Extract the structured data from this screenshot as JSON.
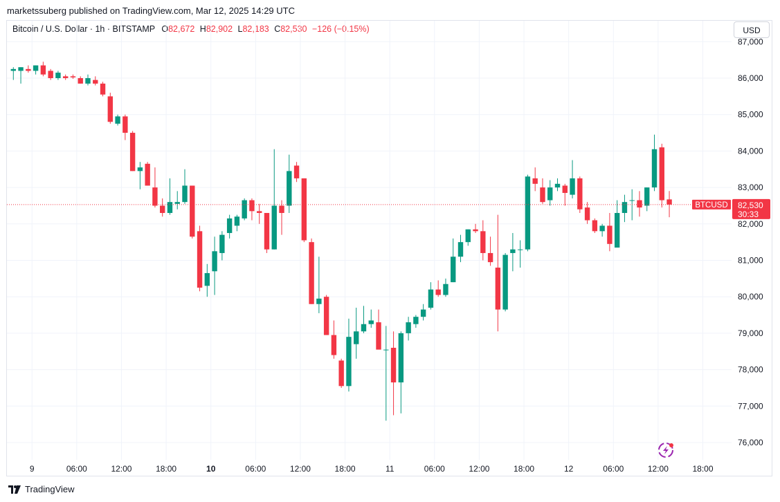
{
  "header": {
    "published_text": "marketssuberg published on TradingView.com, Mar 12, 2025 14:29 UTC"
  },
  "legend": {
    "symbol": "Bitcoin / U.S. Dollar · 1h · BITSTAMP",
    "o_label": "O",
    "o_value": "82,672",
    "h_label": "H",
    "h_value": "82,902",
    "l_label": "L",
    "l_value": "82,183",
    "c_label": "C",
    "c_value": "82,530",
    "change": "−126 (−0.15%)"
  },
  "currency_button": "USD",
  "price_tag": {
    "symbol": "BTCUSD",
    "price": "82,530",
    "countdown": "30:33",
    "value": 82530
  },
  "footer": {
    "brand": "TradingView"
  },
  "colors": {
    "up": "#089981",
    "down": "#f23645",
    "grid": "#f0f3fa",
    "text": "#131722"
  },
  "chart_data": {
    "type": "candlestick",
    "title": "Bitcoin / U.S. Dollar · 1h · BITSTAMP",
    "y_ticks": [
      {
        "v": 76000,
        "l": "76,000"
      },
      {
        "v": 77000,
        "l": "77,000"
      },
      {
        "v": 78000,
        "l": "78,000"
      },
      {
        "v": 79000,
        "l": "79,000"
      },
      {
        "v": 80000,
        "l": "80,000"
      },
      {
        "v": 81000,
        "l": "81,000"
      },
      {
        "v": 82000,
        "l": "82,000"
      },
      {
        "v": 83000,
        "l": "83,000"
      },
      {
        "v": 84000,
        "l": "84,000"
      },
      {
        "v": 85000,
        "l": "85,000"
      },
      {
        "v": 86000,
        "l": "86,000"
      },
      {
        "v": 87000,
        "l": "87,000"
      }
    ],
    "x_ticks": [
      {
        "i": 2.5,
        "l": "9",
        "bold": false
      },
      {
        "i": 8.5,
        "l": "06:00",
        "bold": false
      },
      {
        "i": 14.5,
        "l": "12:00",
        "bold": false
      },
      {
        "i": 20.5,
        "l": "18:00",
        "bold": false
      },
      {
        "i": 26.5,
        "l": "10",
        "bold": true
      },
      {
        "i": 32.5,
        "l": "06:00",
        "bold": false
      },
      {
        "i": 38.5,
        "l": "12:00",
        "bold": false
      },
      {
        "i": 44.5,
        "l": "18:00",
        "bold": false
      },
      {
        "i": 50.5,
        "l": "11",
        "bold": false
      },
      {
        "i": 56.5,
        "l": "06:00",
        "bold": false
      },
      {
        "i": 62.5,
        "l": "12:00",
        "bold": false
      },
      {
        "i": 68.5,
        "l": "18:00",
        "bold": false
      },
      {
        "i": 74.5,
        "l": "12",
        "bold": false
      },
      {
        "i": 80.5,
        "l": "06:00",
        "bold": false
      },
      {
        "i": 86.5,
        "l": "12:00",
        "bold": false
      },
      {
        "i": 92.5,
        "l": "18:00",
        "bold": false
      }
    ],
    "candles": [
      {
        "o": 86200,
        "h": 86300,
        "l": 85950,
        "c": 86250
      },
      {
        "o": 86200,
        "h": 86300,
        "l": 85850,
        "c": 86300
      },
      {
        "o": 86250,
        "h": 86350,
        "l": 86150,
        "c": 86200
      },
      {
        "o": 86200,
        "h": 86350,
        "l": 86100,
        "c": 86350
      },
      {
        "o": 86350,
        "h": 86450,
        "l": 86050,
        "c": 86100
      },
      {
        "o": 86200,
        "h": 86250,
        "l": 85950,
        "c": 86000
      },
      {
        "o": 86000,
        "h": 86200,
        "l": 85950,
        "c": 86150
      },
      {
        "o": 86050,
        "h": 86100,
        "l": 85950,
        "c": 86000
      },
      {
        "o": 86050,
        "h": 86100,
        "l": 85980,
        "c": 86020
      },
      {
        "o": 86000,
        "h": 86050,
        "l": 85850,
        "c": 85850
      },
      {
        "o": 85850,
        "h": 86100,
        "l": 85800,
        "c": 86000
      },
      {
        "o": 85950,
        "h": 86050,
        "l": 85800,
        "c": 85850
      },
      {
        "o": 85850,
        "h": 85900,
        "l": 85500,
        "c": 85550
      },
      {
        "o": 85500,
        "h": 85600,
        "l": 84750,
        "c": 84800
      },
      {
        "o": 84750,
        "h": 85000,
        "l": 84700,
        "c": 84950
      },
      {
        "o": 84950,
        "h": 85000,
        "l": 84300,
        "c": 84500
      },
      {
        "o": 84500,
        "h": 84550,
        "l": 83450,
        "c": 83450
      },
      {
        "o": 83450,
        "h": 83700,
        "l": 82950,
        "c": 83550
      },
      {
        "o": 83650,
        "h": 83700,
        "l": 83050,
        "c": 83050
      },
      {
        "o": 83000,
        "h": 83550,
        "l": 82450,
        "c": 82500
      },
      {
        "o": 82500,
        "h": 82700,
        "l": 82200,
        "c": 82300
      },
      {
        "o": 82300,
        "h": 83250,
        "l": 82250,
        "c": 82600
      },
      {
        "o": 82550,
        "h": 82900,
        "l": 82400,
        "c": 82600
      },
      {
        "o": 82600,
        "h": 83500,
        "l": 82550,
        "c": 83050
      },
      {
        "o": 83050,
        "h": 83050,
        "l": 81600,
        "c": 81650
      },
      {
        "o": 81800,
        "h": 81950,
        "l": 80150,
        "c": 80250
      },
      {
        "o": 80300,
        "h": 80900,
        "l": 80000,
        "c": 80650
      },
      {
        "o": 80700,
        "h": 81650,
        "l": 80050,
        "c": 81250
      },
      {
        "o": 81200,
        "h": 81800,
        "l": 81000,
        "c": 81700
      },
      {
        "o": 81750,
        "h": 82250,
        "l": 81600,
        "c": 82150
      },
      {
        "o": 81950,
        "h": 82250,
        "l": 81800,
        "c": 82200
      },
      {
        "o": 82150,
        "h": 82700,
        "l": 82100,
        "c": 82650
      },
      {
        "o": 82650,
        "h": 82700,
        "l": 82100,
        "c": 82350
      },
      {
        "o": 82350,
        "h": 82550,
        "l": 82000,
        "c": 82300
      },
      {
        "o": 82300,
        "h": 82300,
        "l": 81200,
        "c": 81300
      },
      {
        "o": 81300,
        "h": 84050,
        "l": 81300,
        "c": 82500
      },
      {
        "o": 82500,
        "h": 82650,
        "l": 81700,
        "c": 82300
      },
      {
        "o": 82500,
        "h": 83900,
        "l": 82300,
        "c": 83450
      },
      {
        "o": 83600,
        "h": 83700,
        "l": 83150,
        "c": 83250
      },
      {
        "o": 83250,
        "h": 83250,
        "l": 81500,
        "c": 81550
      },
      {
        "o": 81500,
        "h": 81600,
        "l": 79800,
        "c": 79800
      },
      {
        "o": 79800,
        "h": 81100,
        "l": 79550,
        "c": 79950
      },
      {
        "o": 80000,
        "h": 80050,
        "l": 78950,
        "c": 78950
      },
      {
        "o": 78950,
        "h": 79350,
        "l": 78300,
        "c": 78400
      },
      {
        "o": 78250,
        "h": 78300,
        "l": 77500,
        "c": 77550
      },
      {
        "o": 77550,
        "h": 79400,
        "l": 77400,
        "c": 78900
      },
      {
        "o": 78700,
        "h": 79700,
        "l": 78300,
        "c": 79050
      },
      {
        "o": 79050,
        "h": 79750,
        "l": 79000,
        "c": 79250
      },
      {
        "o": 79250,
        "h": 79650,
        "l": 79150,
        "c": 79350
      },
      {
        "o": 79300,
        "h": 79650,
        "l": 78600,
        "c": 78550
      },
      {
        "o": 78550,
        "h": 79200,
        "l": 76600,
        "c": 78550
      },
      {
        "o": 78600,
        "h": 79050,
        "l": 76750,
        "c": 77650
      },
      {
        "o": 77650,
        "h": 79050,
        "l": 76800,
        "c": 79000
      },
      {
        "o": 79000,
        "h": 79450,
        "l": 78800,
        "c": 79300
      },
      {
        "o": 79250,
        "h": 79500,
        "l": 79150,
        "c": 79450
      },
      {
        "o": 79450,
        "h": 79800,
        "l": 79350,
        "c": 79650
      },
      {
        "o": 79700,
        "h": 80400,
        "l": 79650,
        "c": 80200
      },
      {
        "o": 80200,
        "h": 80450,
        "l": 80000,
        "c": 80050
      },
      {
        "o": 80050,
        "h": 80500,
        "l": 80000,
        "c": 80350
      },
      {
        "o": 80400,
        "h": 81600,
        "l": 80400,
        "c": 81100
      },
      {
        "o": 81100,
        "h": 81700,
        "l": 80950,
        "c": 81500
      },
      {
        "o": 81500,
        "h": 81850,
        "l": 81400,
        "c": 81850
      },
      {
        "o": 81850,
        "h": 82000,
        "l": 81750,
        "c": 81800
      },
      {
        "o": 81800,
        "h": 82100,
        "l": 81000,
        "c": 81200
      },
      {
        "o": 81200,
        "h": 81650,
        "l": 80850,
        "c": 80950
      },
      {
        "o": 80800,
        "h": 82250,
        "l": 79050,
        "c": 79650
      },
      {
        "o": 79650,
        "h": 81200,
        "l": 79600,
        "c": 81150
      },
      {
        "o": 81200,
        "h": 81750,
        "l": 80700,
        "c": 81300
      },
      {
        "o": 81300,
        "h": 81550,
        "l": 80800,
        "c": 81300
      },
      {
        "o": 81300,
        "h": 83350,
        "l": 81250,
        "c": 83300
      },
      {
        "o": 83250,
        "h": 83550,
        "l": 82900,
        "c": 83100
      },
      {
        "o": 83000,
        "h": 83250,
        "l": 82550,
        "c": 82600
      },
      {
        "o": 82650,
        "h": 83200,
        "l": 82500,
        "c": 83000
      },
      {
        "o": 83000,
        "h": 83250,
        "l": 82900,
        "c": 83100
      },
      {
        "o": 83050,
        "h": 83100,
        "l": 82500,
        "c": 82850
      },
      {
        "o": 82800,
        "h": 83750,
        "l": 82700,
        "c": 83250
      },
      {
        "o": 83250,
        "h": 83300,
        "l": 82300,
        "c": 82400
      },
      {
        "o": 82450,
        "h": 82600,
        "l": 82000,
        "c": 82100
      },
      {
        "o": 82100,
        "h": 82150,
        "l": 81750,
        "c": 81800
      },
      {
        "o": 81800,
        "h": 82000,
        "l": 81650,
        "c": 81950
      },
      {
        "o": 81950,
        "h": 82300,
        "l": 81250,
        "c": 81450
      },
      {
        "o": 81350,
        "h": 82650,
        "l": 81350,
        "c": 82300
      },
      {
        "o": 82300,
        "h": 82800,
        "l": 82050,
        "c": 82600
      },
      {
        "o": 82650,
        "h": 82950,
        "l": 82100,
        "c": 82650
      },
      {
        "o": 82650,
        "h": 82900,
        "l": 82200,
        "c": 82450
      },
      {
        "o": 82500,
        "h": 83000,
        "l": 82350,
        "c": 83000
      },
      {
        "o": 83000,
        "h": 84450,
        "l": 82900,
        "c": 84050
      },
      {
        "o": 84100,
        "h": 84200,
        "l": 82450,
        "c": 82650
      },
      {
        "o": 82672,
        "h": 82902,
        "l": 82183,
        "c": 82530
      }
    ],
    "y_range": [
      75600,
      87300
    ],
    "grid": true
  }
}
